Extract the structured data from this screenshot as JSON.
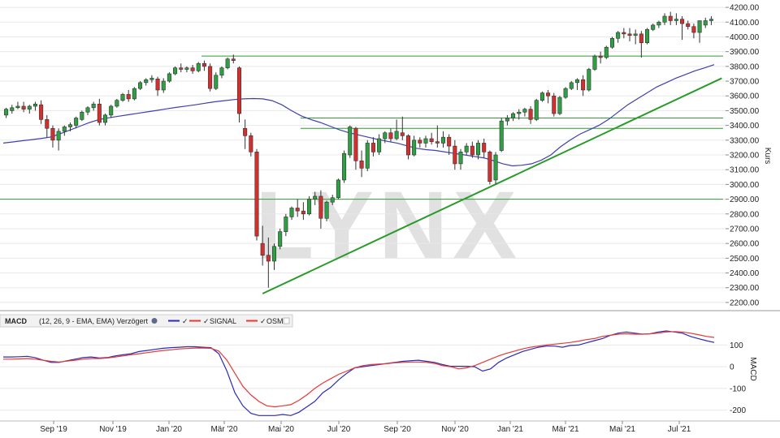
{
  "watermark": "LYNX",
  "colors": {
    "bull": "#2ea043",
    "bear": "#d32f2f",
    "ma": "#3f3fb0",
    "support": "#2e9e2e",
    "trend": "#2a9a2a",
    "macd": "#2b2bb8",
    "signal": "#e53935",
    "grid": "#e8e8e8"
  },
  "chart_data": [
    {
      "type": "candlestick",
      "ylabel": "Kurs",
      "ylim": [
        2150,
        4250
      ],
      "yticks": [
        "2200.00",
        "2300.00",
        "2400.00",
        "2500.00",
        "2600.00",
        "2700.00",
        "2800.00",
        "2900.00",
        "3000.00",
        "3100.00",
        "3200.00",
        "3300.00",
        "3400.00",
        "3500.00",
        "3600.00",
        "3700.00",
        "3800.00",
        "3900.00",
        "4000.00",
        "4100.00",
        "4200.00"
      ],
      "xticks": [
        "Sep '19",
        "Nov '19",
        "Jan '20",
        "Mär '20",
        "Mai '20",
        "Jul '20",
        "Sep '20",
        "Nov '20",
        "Jan '21",
        "Mär '21",
        "Mai '21",
        "Jul '21"
      ],
      "candles": [
        [
          3470,
          3520,
          3450,
          3510
        ],
        [
          3500,
          3540,
          3480,
          3520
        ],
        [
          3520,
          3560,
          3510,
          3530
        ],
        [
          3530,
          3560,
          3490,
          3510
        ],
        [
          3510,
          3540,
          3480,
          3530
        ],
        [
          3530,
          3560,
          3500,
          3545
        ],
        [
          3540,
          3570,
          3410,
          3440
        ],
        [
          3440,
          3470,
          3320,
          3380
        ],
        [
          3380,
          3400,
          3250,
          3300
        ],
        [
          3300,
          3380,
          3230,
          3360
        ],
        [
          3360,
          3400,
          3330,
          3390
        ],
        [
          3390,
          3420,
          3360,
          3405
        ],
        [
          3400,
          3460,
          3380,
          3450
        ],
        [
          3440,
          3500,
          3430,
          3490
        ],
        [
          3490,
          3530,
          3470,
          3520
        ],
        [
          3520,
          3560,
          3500,
          3545
        ],
        [
          3545,
          3580,
          3400,
          3420
        ],
        [
          3420,
          3480,
          3400,
          3470
        ],
        [
          3470,
          3540,
          3450,
          3530
        ],
        [
          3530,
          3580,
          3520,
          3570
        ],
        [
          3570,
          3620,
          3560,
          3610
        ],
        [
          3610,
          3640,
          3560,
          3580
        ],
        [
          3580,
          3660,
          3570,
          3650
        ],
        [
          3650,
          3700,
          3640,
          3690
        ],
        [
          3690,
          3720,
          3670,
          3710
        ],
        [
          3710,
          3740,
          3690,
          3720
        ],
        [
          3715,
          3730,
          3600,
          3640
        ],
        [
          3640,
          3720,
          3620,
          3700
        ],
        [
          3700,
          3760,
          3690,
          3750
        ],
        [
          3750,
          3800,
          3740,
          3790
        ],
        [
          3790,
          3820,
          3760,
          3780
        ],
        [
          3780,
          3800,
          3760,
          3790
        ],
        [
          3790,
          3810,
          3750,
          3770
        ],
        [
          3770,
          3830,
          3760,
          3820
        ],
        [
          3820,
          3840,
          3770,
          3800
        ],
        [
          3800,
          3820,
          3630,
          3650
        ],
        [
          3650,
          3760,
          3640,
          3740
        ],
        [
          3740,
          3800,
          3720,
          3790
        ],
        [
          3790,
          3860,
          3780,
          3850
        ],
        [
          3850,
          3880,
          3820,
          3840
        ],
        [
          3790,
          3800,
          3420,
          3480
        ],
        [
          3380,
          3440,
          3240,
          3330
        ],
        [
          3330,
          3350,
          3190,
          3220
        ],
        [
          3220,
          3240,
          2620,
          2650
        ],
        [
          2600,
          2720,
          2450,
          2520
        ],
        [
          2520,
          2640,
          2300,
          2480
        ],
        [
          2480,
          2600,
          2420,
          2580
        ],
        [
          2580,
          2700,
          2560,
          2680
        ],
        [
          2680,
          2800,
          2650,
          2780
        ],
        [
          2780,
          2850,
          2760,
          2840
        ],
        [
          2840,
          2900,
          2780,
          2820
        ],
        [
          2820,
          2880,
          2760,
          2800
        ],
        [
          2800,
          2920,
          2790,
          2900
        ],
        [
          2900,
          2950,
          2860,
          2920
        ],
        [
          2920,
          2960,
          2700,
          2770
        ],
        [
          2770,
          2890,
          2750,
          2880
        ],
        [
          2880,
          2930,
          2860,
          2910
        ],
        [
          2910,
          3040,
          2900,
          3030
        ],
        [
          3030,
          3230,
          3010,
          3210
        ],
        [
          3200,
          3400,
          3180,
          3390
        ],
        [
          3380,
          3390,
          3100,
          3160
        ],
        [
          3160,
          3230,
          3050,
          3110
        ],
        [
          3110,
          3300,
          3090,
          3280
        ],
        [
          3280,
          3320,
          3190,
          3220
        ],
        [
          3220,
          3340,
          3200,
          3310
        ],
        [
          3310,
          3360,
          3280,
          3350
        ],
        [
          3350,
          3380,
          3290,
          3310
        ],
        [
          3310,
          3440,
          3300,
          3360
        ],
        [
          3350,
          3460,
          3300,
          3330
        ],
        [
          3330,
          3340,
          3170,
          3200
        ],
        [
          3200,
          3330,
          3190,
          3300
        ],
        [
          3300,
          3320,
          3250,
          3280
        ],
        [
          3280,
          3330,
          3250,
          3310
        ],
        [
          3310,
          3350,
          3270,
          3290
        ],
        [
          3290,
          3400,
          3250,
          3280
        ],
        [
          3280,
          3360,
          3250,
          3320
        ],
        [
          3320,
          3340,
          3200,
          3260
        ],
        [
          3260,
          3300,
          3100,
          3140
        ],
        [
          3140,
          3240,
          3100,
          3220
        ],
        [
          3220,
          3280,
          3200,
          3260
        ],
        [
          3260,
          3290,
          3180,
          3200
        ],
        [
          3200,
          3300,
          3170,
          3280
        ],
        [
          3280,
          3310,
          3180,
          3220
        ],
        [
          3220,
          3230,
          3000,
          3020
        ],
        [
          3030,
          3220,
          3000,
          3200
        ],
        [
          3230,
          3450,
          3220,
          3430
        ],
        [
          3430,
          3470,
          3400,
          3450
        ],
        [
          3450,
          3490,
          3430,
          3480
        ],
        [
          3480,
          3510,
          3440,
          3490
        ],
        [
          3490,
          3520,
          3460,
          3510
        ],
        [
          3510,
          3530,
          3410,
          3440
        ],
        [
          3440,
          3580,
          3430,
          3570
        ],
        [
          3570,
          3630,
          3560,
          3620
        ],
        [
          3620,
          3640,
          3550,
          3600
        ],
        [
          3600,
          3620,
          3460,
          3480
        ],
        [
          3480,
          3600,
          3470,
          3590
        ],
        [
          3590,
          3660,
          3580,
          3650
        ],
        [
          3650,
          3700,
          3640,
          3690
        ],
        [
          3690,
          3720,
          3640,
          3710
        ],
        [
          3710,
          3740,
          3600,
          3640
        ],
        [
          3640,
          3790,
          3630,
          3780
        ],
        [
          3780,
          3880,
          3770,
          3870
        ],
        [
          3870,
          3900,
          3820,
          3860
        ],
        [
          3860,
          3940,
          3850,
          3930
        ],
        [
          3930,
          4000,
          3920,
          3990
        ],
        [
          3990,
          4040,
          3960,
          4030
        ],
        [
          4030,
          4060,
          3990,
          4020
        ],
        [
          4020,
          4060,
          3970,
          4010
        ],
        [
          4010,
          4050,
          3950,
          4020
        ],
        [
          4020,
          4040,
          3860,
          3960
        ],
        [
          3960,
          4060,
          3950,
          4050
        ],
        [
          4050,
          4090,
          4040,
          4080
        ],
        [
          4080,
          4110,
          4060,
          4100
        ],
        [
          4100,
          4160,
          4080,
          4140
        ],
        [
          4140,
          4170,
          4080,
          4110
        ],
        [
          4110,
          4160,
          4080,
          4120
        ],
        [
          4120,
          4140,
          3980,
          4090
        ],
        [
          4090,
          4110,
          4050,
          4070
        ],
        [
          4070,
          4090,
          3990,
          4030
        ],
        [
          4030,
          4110,
          3960,
          4110
        ],
        [
          4080,
          4130,
          4060,
          4110
        ],
        [
          4110,
          4140,
          4080,
          4120
        ]
      ],
      "moving_average": [
        3280,
        3288,
        3296,
        3304,
        3312,
        3322,
        3345,
        3370,
        3395,
        3420,
        3440,
        3452,
        3462,
        3472,
        3482,
        3492,
        3502,
        3512,
        3522,
        3531,
        3540,
        3550,
        3560,
        3568,
        3575,
        3580,
        3582,
        3580,
        3568,
        3540,
        3500,
        3465,
        3440,
        3420,
        3395,
        3370,
        3350,
        3335,
        3320,
        3305,
        3292,
        3280,
        3262,
        3245,
        3236,
        3230,
        3220,
        3210,
        3200,
        3190,
        3180,
        3162,
        3140,
        3126,
        3130,
        3140,
        3165,
        3200,
        3255,
        3300,
        3340,
        3370,
        3400,
        3440,
        3490,
        3540,
        3580,
        3620,
        3660,
        3690,
        3720,
        3745,
        3770,
        3790,
        3812
      ],
      "support_lines": [
        2900,
        3380,
        3450,
        3870
      ],
      "trendline": [
        [
          2260,
          0.0
        ],
        [
          3720,
          1.0
        ]
      ]
    },
    {
      "type": "line",
      "title": "MACD",
      "subtitle": "(12, 26, 9 - EMA, EMA) Verzögert",
      "ylabel": "MACD",
      "ylim": [
        -250,
        180
      ],
      "yticks": [
        "100",
        "0",
        "-100",
        "-200"
      ],
      "series": [
        {
          "name": "MACD",
          "values": [
            45,
            45,
            46,
            48,
            42,
            30,
            20,
            20,
            28,
            35,
            42,
            45,
            40,
            42,
            50,
            55,
            60,
            70,
            75,
            80,
            85,
            88,
            90,
            92,
            92,
            90,
            88,
            60,
            -20,
            -120,
            -180,
            -215,
            -225,
            -225,
            -225,
            -220,
            -225,
            -210,
            -185,
            -160,
            -120,
            -95,
            -60,
            -30,
            -5,
            0,
            5,
            10,
            15,
            20,
            25,
            28,
            30,
            25,
            20,
            10,
            2,
            2,
            2,
            0,
            -20,
            -10,
            20,
            40,
            55,
            70,
            80,
            90,
            95,
            95,
            90,
            98,
            100,
            110,
            120,
            130,
            145,
            155,
            160,
            155,
            150,
            152,
            160,
            165,
            160,
            155,
            140,
            130,
            120,
            112
          ]
        },
        {
          "name": "SIGNAL",
          "values": [
            35,
            35,
            36,
            38,
            35,
            30,
            25,
            22,
            26,
            30,
            35,
            38,
            38,
            40,
            45,
            50,
            55,
            60,
            65,
            70,
            75,
            78,
            82,
            84,
            86,
            86,
            85,
            72,
            30,
            -30,
            -90,
            -130,
            -160,
            -180,
            -185,
            -180,
            -175,
            -155,
            -130,
            -100,
            -75,
            -55,
            -35,
            -20,
            -5,
            5,
            10,
            12,
            14,
            18,
            20,
            22,
            22,
            20,
            15,
            5,
            0,
            -10,
            -5,
            5,
            20,
            35,
            50,
            62,
            72,
            82,
            90,
            95,
            100,
            104,
            108,
            112,
            118,
            125,
            130,
            140,
            145,
            150,
            152,
            150,
            150,
            152,
            155,
            160,
            162,
            160,
            155,
            148,
            140,
            135
          ]
        }
      ],
      "legend": [
        {
          "label": "",
          "symbol": "line",
          "color": "#2b2bb8",
          "check": "✓"
        },
        {
          "label": "SIGNAL",
          "symbol": "line",
          "color": "#e53935",
          "check": "✓"
        },
        {
          "label": "OSMA",
          "symbol": "line",
          "color": "#e53935",
          "check": "✓"
        }
      ]
    }
  ]
}
